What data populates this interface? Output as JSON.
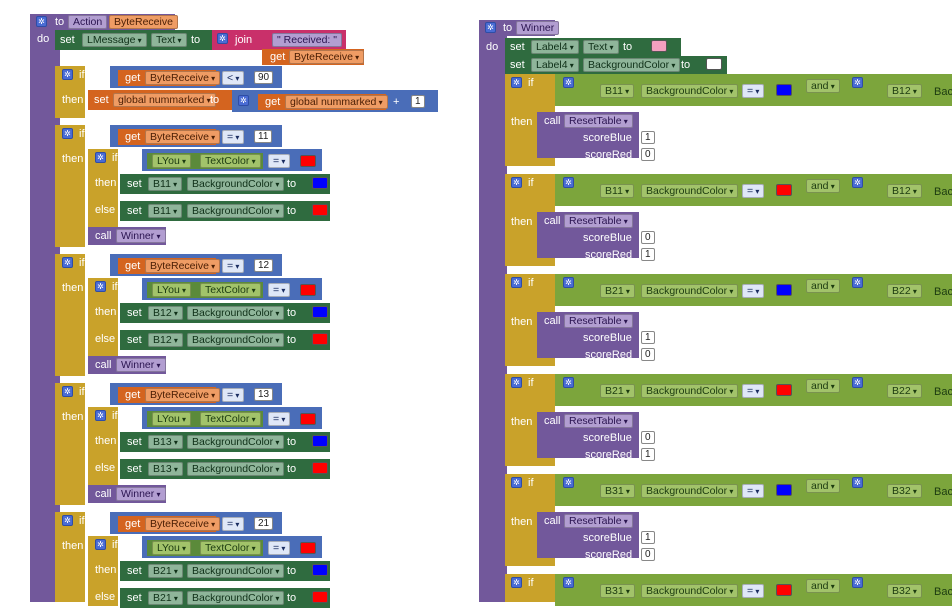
{
  "left": {
    "proc_header": {
      "to": "to",
      "name": "Action",
      "param": "ByteReceive"
    },
    "do": "do",
    "set_msg": {
      "set": "set",
      "comp": "LMessage",
      "prop": "Text",
      "to": "to",
      "join": "join",
      "text1": "\" Received: \"",
      "get": "get",
      "var": "ByteReceive"
    },
    "if1": {
      "if": "if",
      "get": "get",
      "var": "ByteReceive",
      "op": "<",
      "num": "90",
      "then": "then",
      "set": "set",
      "global": "global nummarked",
      "to": "to",
      "get2": "get",
      "global2": "global nummarked",
      "plus": "+",
      "num2": "1"
    },
    "groups": [
      {
        "num": "11",
        "cell": "B11"
      },
      {
        "num": "12",
        "cell": "B12"
      },
      {
        "num": "13",
        "cell": "B13"
      },
      {
        "num": "21",
        "cell": "B21"
      }
    ],
    "labels": {
      "if": "if",
      "then": "then",
      "else": "else",
      "get": "get",
      "var": "ByteReceive",
      "eq": "=",
      "lyou": "LYou",
      "textcolor": "TextColor",
      "set": "set",
      "bg": "BackgroundColor",
      "to": "to",
      "call": "call",
      "winner": "Winner"
    }
  },
  "right": {
    "proc_header": {
      "to": "to",
      "name": "Winner"
    },
    "do": "do",
    "set1": {
      "set": "set",
      "comp": "Label4",
      "prop": "Text",
      "to": "to"
    },
    "set2": {
      "set": "set",
      "comp": "Label4",
      "prop": "BackgroundColor",
      "to": "to"
    },
    "cases": [
      {
        "a": "B11",
        "b": "B12",
        "blue": "1",
        "red": "0",
        "color": "#0000ff"
      },
      {
        "a": "B11",
        "b": "B12",
        "blue": "0",
        "red": "1",
        "color": "#ff0000"
      },
      {
        "a": "B21",
        "b": "B22",
        "blue": "1",
        "red": "0",
        "color": "#0000ff"
      },
      {
        "a": "B21",
        "b": "B22",
        "blue": "0",
        "red": "1",
        "color": "#ff0000"
      },
      {
        "a": "B31",
        "b": "B32",
        "blue": "1",
        "red": "0",
        "color": "#0000ff"
      },
      {
        "a": "B31",
        "b": "B32",
        "blue": "0",
        "red": "1",
        "color": "#ff0000"
      }
    ],
    "labels": {
      "if": "if",
      "then": "then",
      "bg": "BackgroundColor",
      "eq": "=",
      "and": "and",
      "call": "call",
      "reset": "ResetTable",
      "scoreBlue": "scoreBlue",
      "scoreRed": "scoreRed",
      "bac": "Bac"
    }
  },
  "colors": {
    "blue": "#0000ff",
    "red": "#ff0000",
    "pink": "#f4a0c0",
    "white": "#ffffff"
  }
}
